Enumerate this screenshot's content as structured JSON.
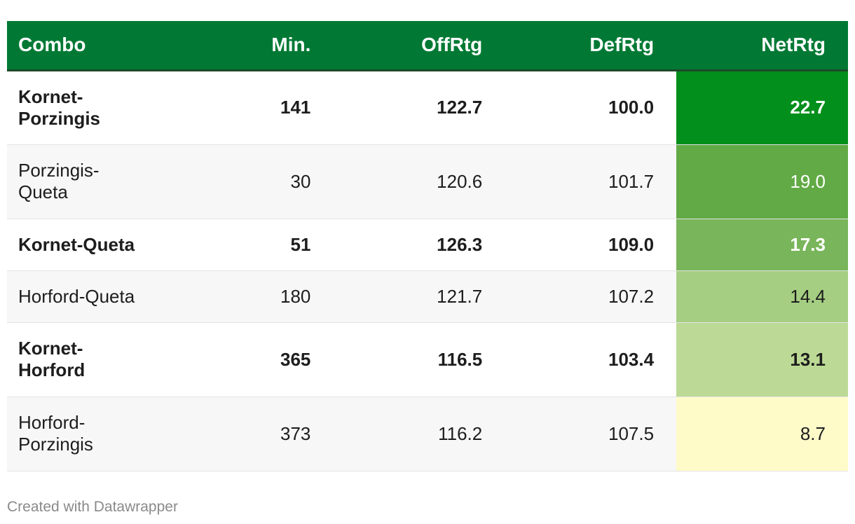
{
  "header_color": "#017934",
  "chart_data": {
    "type": "table",
    "columns": [
      "Combo",
      "Min.",
      "OffRtg",
      "DefRtg",
      "NetRtg"
    ],
    "rows": [
      {
        "combo": "Kornet-\nPorzingis",
        "min": "141",
        "off": "122.7",
        "def": "100.0",
        "net": "22.7",
        "net_color": "#038f1b",
        "net_text_color": "#ffffff",
        "bold": true
      },
      {
        "combo": "Porzingis-\nQueta",
        "min": "30",
        "off": "120.6",
        "def": "101.7",
        "net": "19.0",
        "net_color": "#61aa45",
        "net_text_color": "#ffffff",
        "bold": false
      },
      {
        "combo": "Kornet-Queta",
        "min": "51",
        "off": "126.3",
        "def": "109.0",
        "net": "17.3",
        "net_color": "#79b55b",
        "net_text_color": "#ffffff",
        "bold": true
      },
      {
        "combo": "Horford-Queta",
        "min": "180",
        "off": "121.7",
        "def": "107.2",
        "net": "14.4",
        "net_color": "#a5ce82",
        "net_text_color": "#1d1d1d",
        "bold": false
      },
      {
        "combo": "Kornet-\nHorford",
        "min": "365",
        "off": "116.5",
        "def": "103.4",
        "net": "13.1",
        "net_color": "#bcda95",
        "net_text_color": "#1d1d1d",
        "bold": true
      },
      {
        "combo": "Horford-\nPorzingis",
        "min": "373",
        "off": "116.2",
        "def": "107.5",
        "net": "8.7",
        "net_color": "#fffbc9",
        "net_text_color": "#1d1d1d",
        "bold": false
      }
    ]
  },
  "footer": {
    "credit": "Created with Datawrapper"
  }
}
